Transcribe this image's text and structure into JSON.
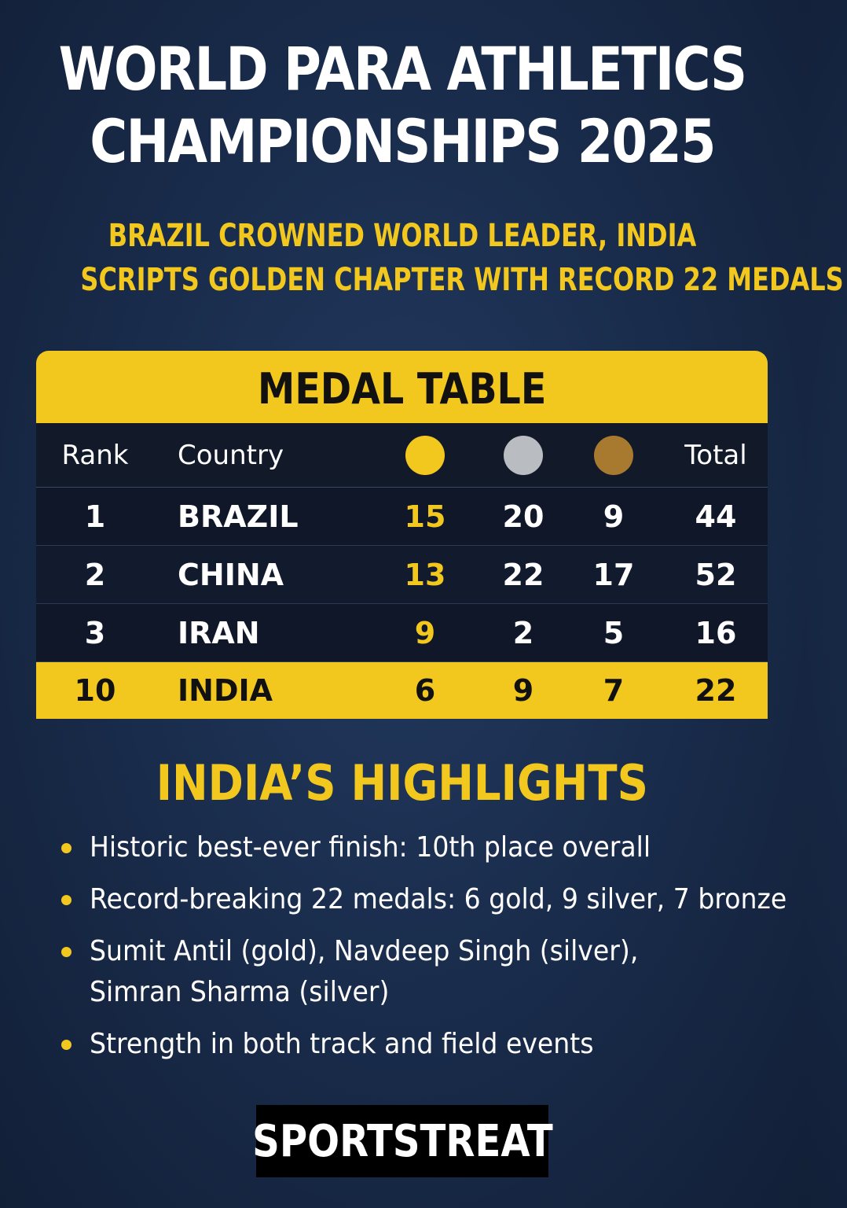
{
  "title": {
    "line1": "WORLD PARA ATHLETICS",
    "line2": "CHAMPIONSHIPS 2025"
  },
  "subtitle": {
    "line1": "BRAZIL CROWNED WORLD LEADER, INDIA",
    "line2": "SCRIPTS GOLDEN CHAPTER WITH RECORD 22 MEDALS"
  },
  "medal_table": {
    "heading": "MEDAL TABLE",
    "columns": {
      "rank": "Rank",
      "country": "Country",
      "gold_icon": "gold-medal-icon",
      "silver_icon": "silver-medal-icon",
      "bronze_icon": "bronze-medal-icon",
      "total": "Total"
    },
    "rows": [
      {
        "rank": "1",
        "country": "BRAZIL",
        "gold": "15",
        "silver": "20",
        "bronze": "9",
        "total": "44"
      },
      {
        "rank": "2",
        "country": "CHINA",
        "gold": "13",
        "silver": "22",
        "bronze": "17",
        "total": "52"
      },
      {
        "rank": "3",
        "country": "IRAN",
        "gold": "9",
        "silver": "2",
        "bronze": "5",
        "total": "16"
      },
      {
        "rank": "10",
        "country": "INDIA",
        "gold": "6",
        "silver": "9",
        "bronze": "7",
        "total": "22"
      }
    ]
  },
  "highlights": {
    "heading": "INDIA’S HIGHLIGHTS",
    "items": [
      {
        "text": "Historic best-ever finish: 10th place overall"
      },
      {
        "text": "Record-breaking 22 medals: 6 gold, 9 silver, 7 bronze"
      },
      {
        "text": "Sumit Antil (gold), Navdeep Singh (silver),",
        "text2": "Simran Sharma (silver)"
      },
      {
        "text": "Strength in both track and field events"
      }
    ]
  },
  "logo": "SPORTSTREAT",
  "colors": {
    "accent": "#f2c81f",
    "background": "#1a2d4d",
    "gold": "#f2c81f",
    "silver": "#b9bcc1",
    "bronze": "#a87a2f"
  }
}
